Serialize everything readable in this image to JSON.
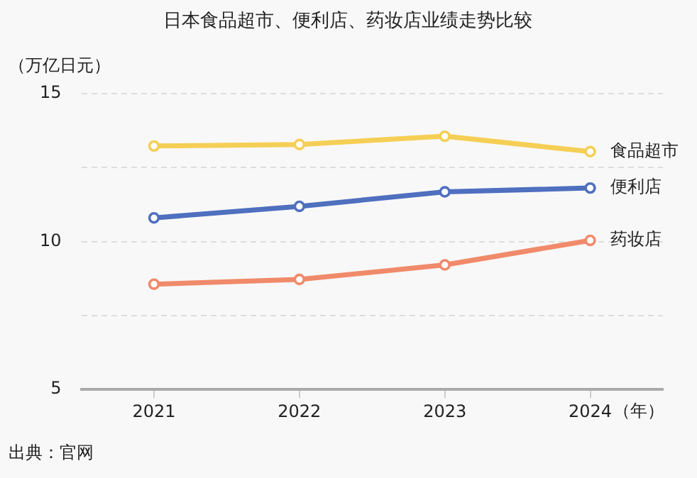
{
  "chart_data": {
    "type": "line",
    "title": "日本食品超市、便利店、药妆店业绩走势比较",
    "ylabel": "（万亿日元）",
    "xlabel": "（年）",
    "categories": [
      "2021",
      "2022",
      "2023",
      "2024"
    ],
    "series": [
      {
        "name": "食品超市",
        "color": "#f5cf55",
        "values": [
          13.23,
          13.28,
          13.56,
          13.04
        ]
      },
      {
        "name": "便利店",
        "color": "#4f6fbf",
        "values": [
          10.8,
          11.19,
          11.68,
          11.81
        ]
      },
      {
        "name": "药妆店",
        "color": "#f08a6a",
        "values": [
          8.56,
          8.72,
          9.21,
          10.04
        ]
      }
    ],
    "ylim": [
      5,
      15
    ],
    "yticks": [
      5,
      {
        "value": 7.5,
        "label": null
      },
      10,
      {
        "value": 12.5,
        "label": null
      },
      15
    ],
    "grid": "y",
    "legend": false,
    "marker": "circle",
    "line_style": "solid",
    "annotations": [
      "出典：官网"
    ]
  }
}
